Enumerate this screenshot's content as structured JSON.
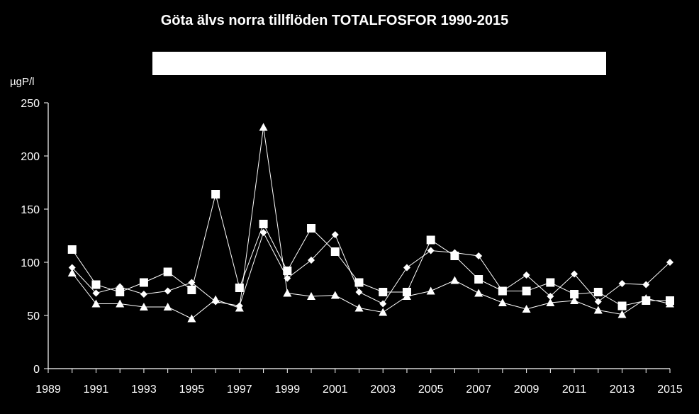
{
  "chart_data": {
    "type": "line",
    "title": "Göta älvs norra tillflöden TOTALFOSFOR 1990-2015",
    "ylabel": "µgP/l",
    "xlabel": "",
    "xlim": [
      1989,
      2015
    ],
    "ylim": [
      0,
      250
    ],
    "yticks": [
      0,
      50,
      100,
      150,
      200,
      250
    ],
    "xticks": [
      1989,
      1991,
      1993,
      1995,
      1997,
      1999,
      2001,
      2003,
      2005,
      2007,
      2009,
      2011,
      2013,
      2015
    ],
    "grid": false,
    "legend": "top (white box, entries not legible)",
    "x": [
      1990,
      1991,
      1992,
      1993,
      1994,
      1995,
      1996,
      1997,
      1998,
      1999,
      2000,
      2001,
      2002,
      2003,
      2004,
      2005,
      2006,
      2007,
      2008,
      2009,
      2010,
      2011,
      2012,
      2013,
      2014,
      2015
    ],
    "series": [
      {
        "marker": "diamond",
        "values": [
          95,
          71,
          77,
          70,
          73,
          81,
          63,
          59,
          128,
          85,
          102,
          126,
          72,
          61,
          95,
          111,
          109,
          106,
          73,
          88,
          68,
          89,
          63,
          80,
          79,
          100
        ]
      },
      {
        "marker": "square",
        "values": [
          112,
          79,
          72,
          81,
          91,
          74,
          164,
          76,
          136,
          92,
          132,
          110,
          81,
          72,
          72,
          121,
          106,
          84,
          73,
          73,
          81,
          70,
          72,
          59,
          64,
          64
        ]
      },
      {
        "marker": "triangle",
        "values": [
          90,
          61,
          61,
          58,
          58,
          47,
          65,
          57,
          227,
          71,
          68,
          69,
          57,
          53,
          68,
          73,
          83,
          71,
          62,
          56,
          62,
          64,
          55,
          51,
          66,
          61
        ]
      }
    ],
    "colors": {
      "background": "#000000",
      "lines": "#ffffff",
      "markers": "#ffffff"
    }
  }
}
